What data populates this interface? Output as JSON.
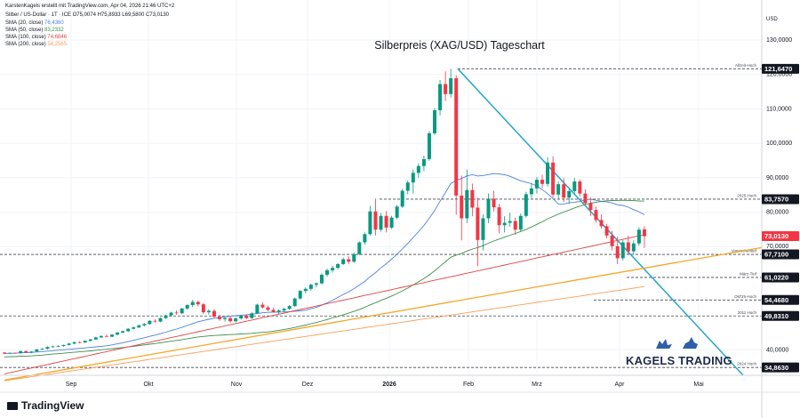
{
  "header": {
    "published_by": "KarstenKagels erstellt mit TradingView.com, Apr 04, 2026 21:46 UTC+2",
    "symbol_line": "Silber / US-Dollar · 1T · ICE  O75,0074  H75,8933  L69,5800  C73,0130"
  },
  "indicators": [
    {
      "label": "SMA (20, close)",
      "value": "76,4360",
      "color": "#4d7fe0"
    },
    {
      "label": "SMA (50, close)",
      "value": "83,2332",
      "color": "#3d8f4a"
    },
    {
      "label": "SMA (100, close)",
      "value": "74,6846",
      "color": "#e04646"
    },
    {
      "label": "SMA (200, close)",
      "value": "58,2565",
      "color": "#f5a05a"
    }
  ],
  "footer": {
    "tradingview": "TradingView",
    "brand": "KAGELS TRADING"
  },
  "chart_data": {
    "type": "candlestick",
    "title": "Silberpreis (XAG/USD) Tageschart",
    "currency": "USD",
    "y_ticks": [
      "130,0000",
      "120,0000",
      "110,0000",
      "100,0000",
      "90,0000",
      "80,0000",
      "70,0000",
      "40,0000"
    ],
    "y_tick_values": [
      130,
      120,
      110,
      100,
      90,
      80,
      70,
      40
    ],
    "y_range": [
      31,
      138
    ],
    "x_ticks": [
      "Sep",
      "Okt",
      "Nov",
      "Dez",
      "2026",
      "Feb",
      "Mrz",
      "Apr",
      "Mai"
    ],
    "price_labels": [
      {
        "text": "121,6470",
        "value": 121.647,
        "style": "dark"
      },
      {
        "text": "83,7570",
        "value": 83.757,
        "style": "dark"
      },
      {
        "text": "73,0130",
        "value": 73.013,
        "style": "red"
      },
      {
        "text": "67,7100",
        "value": 67.71,
        "style": "dark"
      },
      {
        "text": "61,0220",
        "value": 61.022,
        "style": "dark"
      },
      {
        "text": "54,4680",
        "value": 54.468,
        "style": "dark"
      },
      {
        "text": "49,8310",
        "value": 49.831,
        "style": "dark"
      },
      {
        "text": "34,8630",
        "value": 34.863,
        "style": "dark"
      }
    ],
    "levels": [
      {
        "label": "Allzeit-Hoch",
        "value": 121.647
      },
      {
        "label": "2025 Hoch",
        "value": 83.757
      },
      {
        "label": "Vorwochentief",
        "value": 67.71
      },
      {
        "label": "März-Tief",
        "value": 61.022
      },
      {
        "label": "Okt'25-Hoch",
        "value": 54.468
      },
      {
        "label": "2011 Hoch",
        "value": 49.831
      },
      {
        "label": "2024 Hoch",
        "value": 34.863
      }
    ],
    "candles": [
      [
        39.2,
        39.3,
        38.8,
        38.9
      ],
      [
        38.9,
        39.2,
        38.7,
        39.1
      ],
      [
        39.1,
        39.2,
        38.9,
        39.0
      ],
      [
        39.0,
        39.8,
        38.9,
        39.6
      ],
      [
        39.6,
        39.8,
        39.1,
        39.2
      ],
      [
        39.2,
        39.6,
        39.0,
        39.5
      ],
      [
        39.5,
        40.3,
        39.4,
        40.1
      ],
      [
        40.1,
        40.5,
        39.9,
        40.3
      ],
      [
        40.3,
        41.0,
        40.1,
        40.8
      ],
      [
        40.8,
        41.2,
        40.6,
        41.0
      ],
      [
        41.0,
        41.3,
        40.8,
        41.1
      ],
      [
        41.1,
        41.5,
        40.9,
        41.4
      ],
      [
        41.4,
        42.0,
        41.2,
        41.8
      ],
      [
        41.8,
        42.4,
        41.6,
        42.2
      ],
      [
        42.2,
        42.5,
        41.9,
        42.1
      ],
      [
        42.1,
        42.8,
        42.0,
        42.6
      ],
      [
        42.6,
        43.2,
        42.4,
        43.0
      ],
      [
        43.0,
        43.8,
        42.9,
        43.6
      ],
      [
        43.6,
        44.2,
        43.4,
        44.0
      ],
      [
        44.0,
        44.4,
        43.6,
        43.8
      ],
      [
        43.8,
        44.6,
        43.7,
        44.4
      ],
      [
        44.4,
        45.2,
        44.2,
        45.0
      ],
      [
        45.0,
        45.6,
        44.8,
        45.4
      ],
      [
        45.4,
        46.3,
        45.2,
        46.1
      ],
      [
        46.1,
        46.8,
        45.9,
        46.5
      ],
      [
        46.5,
        47.3,
        46.3,
        47.1
      ],
      [
        47.1,
        47.8,
        46.8,
        47.5
      ],
      [
        47.5,
        48.6,
        47.3,
        48.4
      ],
      [
        48.4,
        48.9,
        47.9,
        48.2
      ],
      [
        48.2,
        49.4,
        48.0,
        49.2
      ],
      [
        49.2,
        50.2,
        49.0,
        50.0
      ],
      [
        50.0,
        51.0,
        49.6,
        50.8
      ],
      [
        50.8,
        51.4,
        50.2,
        50.6
      ],
      [
        50.6,
        52.2,
        50.4,
        52.0
      ],
      [
        52.0,
        53.2,
        51.6,
        53.0
      ],
      [
        53.0,
        54.5,
        52.4,
        53.9
      ],
      [
        53.9,
        54.3,
        52.6,
        53.2
      ],
      [
        53.2,
        53.6,
        50.4,
        50.9
      ],
      [
        50.9,
        51.8,
        50.2,
        51.3
      ],
      [
        51.3,
        51.8,
        49.3,
        49.6
      ],
      [
        49.6,
        50.2,
        48.4,
        48.9
      ],
      [
        48.9,
        49.6,
        48.2,
        49.2
      ],
      [
        49.2,
        49.7,
        47.9,
        48.3
      ],
      [
        48.3,
        49.4,
        48.0,
        49.1
      ],
      [
        49.1,
        50.2,
        48.8,
        49.9
      ],
      [
        49.9,
        50.3,
        48.9,
        49.2
      ],
      [
        49.2,
        50.9,
        49.0,
        50.6
      ],
      [
        50.6,
        53.4,
        50.4,
        53.1
      ],
      [
        53.1,
        53.8,
        52.0,
        52.3
      ],
      [
        52.3,
        52.8,
        51.2,
        51.6
      ],
      [
        51.6,
        52.2,
        50.8,
        51.0
      ],
      [
        51.0,
        51.8,
        50.4,
        51.4
      ],
      [
        51.4,
        52.2,
        50.9,
        51.9
      ],
      [
        51.9,
        53.0,
        51.6,
        52.7
      ],
      [
        52.7,
        55.2,
        52.4,
        54.9
      ],
      [
        54.9,
        57.4,
        54.6,
        57.1
      ],
      [
        57.1,
        58.2,
        56.4,
        57.7
      ],
      [
        57.7,
        59.2,
        57.2,
        58.9
      ],
      [
        58.9,
        59.6,
        58.1,
        59.3
      ],
      [
        59.3,
        62.2,
        59.0,
        61.8
      ],
      [
        61.8,
        63.6,
        61.2,
        63.1
      ],
      [
        63.1,
        64.4,
        62.4,
        63.8
      ],
      [
        63.8,
        65.2,
        63.4,
        64.9
      ],
      [
        64.9,
        66.8,
        64.6,
        66.3
      ],
      [
        66.3,
        67.2,
        64.9,
        65.6
      ],
      [
        65.6,
        68.2,
        65.2,
        67.8
      ],
      [
        67.8,
        71.5,
        67.5,
        71.2
      ],
      [
        71.2,
        74.1,
        70.6,
        73.6
      ],
      [
        73.6,
        81.8,
        73.2,
        80.2
      ],
      [
        80.2,
        83.9,
        73.2,
        74.9
      ],
      [
        74.9,
        79.8,
        74.3,
        78.9
      ],
      [
        78.9,
        80.3,
        74.1,
        75.5
      ],
      [
        75.5,
        78.9,
        75.1,
        78.4
      ],
      [
        78.4,
        82.1,
        77.9,
        81.6
      ],
      [
        81.6,
        86.8,
        81.2,
        86.2
      ],
      [
        86.2,
        89.2,
        85.2,
        88.6
      ],
      [
        88.6,
        92.4,
        85.4,
        91.4
      ],
      [
        91.4,
        94.2,
        89.9,
        93.4
      ],
      [
        93.4,
        96.4,
        91.9,
        95.4
      ],
      [
        95.4,
        103.5,
        94.9,
        102.9
      ],
      [
        102.9,
        110.2,
        102.4,
        109.6
      ],
      [
        109.6,
        118.4,
        108.1,
        117.2
      ],
      [
        117.2,
        120.9,
        112.3,
        114.3
      ],
      [
        114.3,
        121.6,
        113.3,
        118.9
      ],
      [
        118.9,
        119.8,
        79.2,
        84.8
      ],
      [
        84.8,
        90.6,
        71.8,
        78.2
      ],
      [
        78.2,
        92.4,
        76.8,
        86.4
      ],
      [
        86.4,
        88.3,
        78.8,
        81.3
      ],
      [
        81.3,
        84.2,
        64.3,
        71.9
      ],
      [
        71.9,
        79.4,
        68.9,
        78.2
      ],
      [
        78.2,
        85.4,
        76.8,
        83.9
      ],
      [
        83.9,
        86.2,
        80.2,
        81.4
      ],
      [
        81.4,
        82.4,
        73.8,
        76.2
      ],
      [
        76.2,
        78.8,
        74.1,
        76.9
      ],
      [
        76.9,
        79.8,
        75.8,
        77.4
      ],
      [
        77.4,
        78.4,
        73.4,
        74.9
      ],
      [
        74.9,
        79.6,
        74.4,
        78.9
      ],
      [
        78.9,
        85.9,
        78.4,
        85.2
      ],
      [
        85.2,
        88.4,
        84.1,
        86.9
      ],
      [
        86.9,
        90.2,
        85.4,
        89.4
      ],
      [
        89.4,
        90.9,
        86.9,
        88.2
      ],
      [
        88.2,
        95.9,
        87.4,
        94.4
      ],
      [
        94.4,
        96.2,
        84.2,
        85.1
      ],
      [
        85.1,
        88.9,
        83.9,
        88.1
      ],
      [
        88.1,
        89.9,
        82.9,
        84.2
      ],
      [
        84.2,
        86.9,
        82.4,
        86.1
      ],
      [
        86.1,
        89.9,
        85.2,
        88.9
      ],
      [
        88.9,
        89.4,
        84.6,
        85.4
      ],
      [
        85.4,
        86.6,
        81.9,
        82.6
      ],
      [
        82.6,
        84.2,
        78.9,
        80.6
      ],
      [
        80.6,
        81.6,
        76.9,
        77.7
      ],
      [
        77.7,
        79.4,
        75.2,
        75.9
      ],
      [
        75.9,
        76.6,
        72.4,
        73.2
      ],
      [
        73.2,
        74.6,
        68.9,
        70.1
      ],
      [
        70.1,
        72.9,
        64.9,
        66.6
      ],
      [
        66.6,
        71.9,
        65.9,
        71.2
      ],
      [
        71.2,
        73.2,
        67.9,
        68.6
      ],
      [
        68.6,
        71.8,
        67.7,
        70.9
      ],
      [
        70.9,
        75.6,
        70.2,
        74.9
      ],
      [
        75.0,
        75.9,
        69.6,
        73.0
      ]
    ]
  }
}
